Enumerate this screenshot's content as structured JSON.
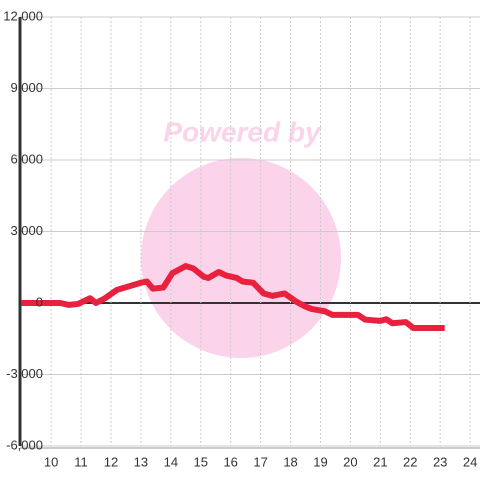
{
  "chart_data": {
    "type": "line",
    "watermark": "Powered by",
    "x": [
      9.0,
      10.3,
      10.6,
      10.9,
      11.3,
      11.5,
      11.8,
      12.2,
      13.0,
      13.2,
      13.4,
      13.75,
      14.05,
      14.5,
      14.75,
      15.1,
      15.25,
      15.6,
      15.85,
      16.2,
      16.4,
      16.75,
      17.1,
      17.4,
      17.8,
      18.2,
      18.5,
      18.7,
      19.15,
      19.4,
      20.25,
      20.5,
      21.0,
      21.2,
      21.4,
      21.85,
      22.1,
      23.15
    ],
    "series": [
      {
        "color": "#e8213f",
        "values": [
          0,
          0,
          -80,
          -40,
          200,
          0,
          200,
          550,
          850,
          900,
          600,
          650,
          1250,
          1550,
          1450,
          1100,
          1050,
          1300,
          1150,
          1050,
          900,
          850,
          400,
          300,
          400,
          50,
          -150,
          -250,
          -350,
          -500,
          -500,
          -700,
          -750,
          -680,
          -850,
          -800,
          -1050,
          -1050
        ]
      }
    ],
    "xlim": [
      8.96,
      24.33
    ],
    "xticks": [
      10,
      11,
      12,
      13,
      14,
      15,
      16,
      17,
      18,
      19,
      20,
      21,
      22,
      23,
      24
    ],
    "ylim": [
      -6000,
      12000
    ],
    "yticks": [
      {
        "value": -6000,
        "label": "-6,000"
      },
      {
        "value": -3000,
        "label": "-3,000"
      },
      0,
      {
        "value": 3000,
        "label": "3,000"
      },
      {
        "value": 6000,
        "label": "6,000"
      },
      {
        "value": 9000,
        "label": "9,000"
      },
      {
        "value": 12000,
        "label": "12,000"
      }
    ],
    "grid": true
  }
}
